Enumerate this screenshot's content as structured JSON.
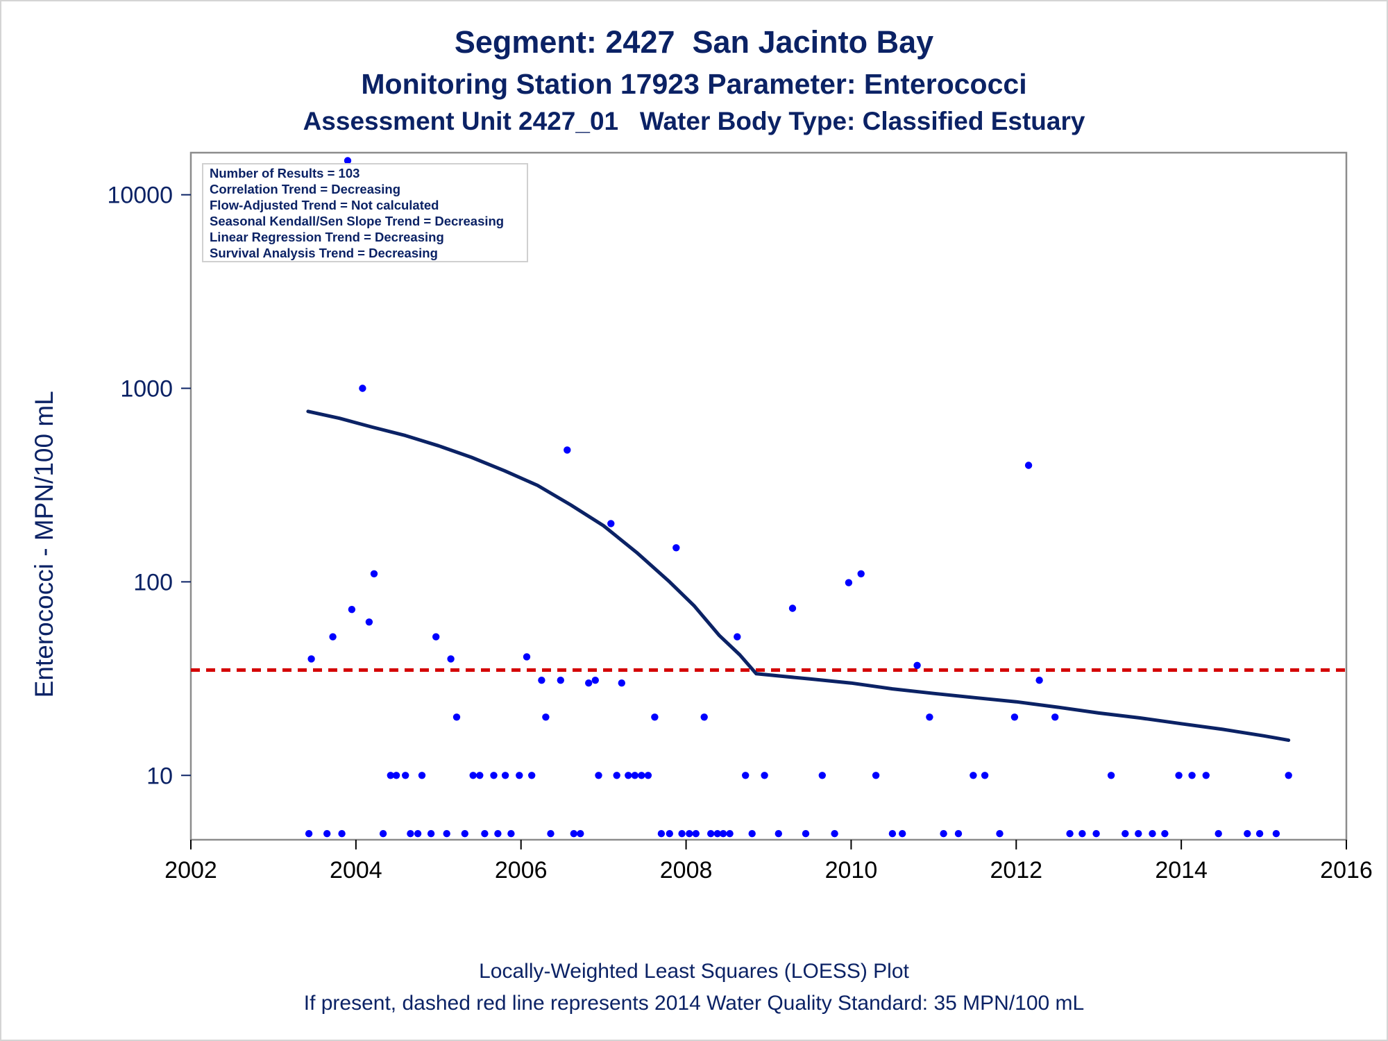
{
  "titles": {
    "title": "Segment: 2427  San Jacinto Bay",
    "subtitle1": "Monitoring Station 17923 Parameter: Enterococci",
    "subtitle2": "Assessment Unit 2427_01   Water Body Type: Classified Estuary"
  },
  "footnotes": {
    "line1": "Locally-Weighted Least Squares (LOESS) Plot",
    "line2": "If present, dashed red line represents 2014 Water Quality Standard: 35 MPN/100 mL"
  },
  "inset": [
    "Number of Results = 103",
    "Correlation Trend = Decreasing",
    "Flow-Adjusted Trend = Not calculated",
    "Seasonal Kendall/Sen Slope Trend = Decreasing",
    "Linear Regression Trend = Decreasing",
    "Survival Analysis Trend = Decreasing"
  ],
  "colors": {
    "text": "#0b2265",
    "points": "#0000ff",
    "loess": "#0b2265",
    "standard": "#d40000",
    "frame": "#8c8c8c"
  },
  "chart_data": {
    "type": "scatter",
    "xlabel": "",
    "ylabel": "Enterococci - MPN/100 mL",
    "x_scale": "linear",
    "y_scale": "log",
    "xlim": [
      2002,
      2016
    ],
    "ylim": [
      4.65,
      16500
    ],
    "x_ticks": [
      2002,
      2004,
      2006,
      2008,
      2010,
      2012,
      2014,
      2016
    ],
    "y_ticks": [
      10,
      100,
      1000,
      10000
    ],
    "grid": false,
    "points": [
      [
        2003.43,
        5
      ],
      [
        2003.46,
        40
      ],
      [
        2003.65,
        5
      ],
      [
        2003.72,
        52
      ],
      [
        2003.83,
        5
      ],
      [
        2003.9,
        15000
      ],
      [
        2003.95,
        72
      ],
      [
        2004.08,
        1000
      ],
      [
        2004.16,
        62
      ],
      [
        2004.22,
        110
      ],
      [
        2004.33,
        5
      ],
      [
        2004.42,
        10
      ],
      [
        2004.49,
        10
      ],
      [
        2004.6,
        10
      ],
      [
        2004.66,
        5
      ],
      [
        2004.75,
        5
      ],
      [
        2004.8,
        10
      ],
      [
        2004.91,
        5
      ],
      [
        2004.97,
        52
      ],
      [
        2005.1,
        5
      ],
      [
        2005.15,
        40
      ],
      [
        2005.22,
        20
      ],
      [
        2005.32,
        5
      ],
      [
        2005.42,
        10
      ],
      [
        2005.5,
        10
      ],
      [
        2005.56,
        5
      ],
      [
        2005.67,
        10
      ],
      [
        2005.72,
        5
      ],
      [
        2005.81,
        10
      ],
      [
        2005.88,
        5
      ],
      [
        2005.98,
        10
      ],
      [
        2006.07,
        41
      ],
      [
        2006.13,
        10
      ],
      [
        2006.25,
        31
      ],
      [
        2006.3,
        20
      ],
      [
        2006.36,
        5
      ],
      [
        2006.48,
        31
      ],
      [
        2006.56,
        480
      ],
      [
        2006.64,
        5
      ],
      [
        2006.72,
        5
      ],
      [
        2006.82,
        30
      ],
      [
        2006.9,
        31
      ],
      [
        2006.94,
        10
      ],
      [
        2007.09,
        200
      ],
      [
        2007.16,
        10
      ],
      [
        2007.22,
        30
      ],
      [
        2007.3,
        10
      ],
      [
        2007.38,
        10
      ],
      [
        2007.46,
        10
      ],
      [
        2007.54,
        10
      ],
      [
        2007.62,
        20
      ],
      [
        2007.7,
        5
      ],
      [
        2007.8,
        5
      ],
      [
        2007.88,
        150
      ],
      [
        2007.95,
        5
      ],
      [
        2008.04,
        5
      ],
      [
        2008.12,
        5
      ],
      [
        2008.22,
        20
      ],
      [
        2008.3,
        5
      ],
      [
        2008.38,
        5
      ],
      [
        2008.45,
        5
      ],
      [
        2008.53,
        5
      ],
      [
        2008.62,
        52
      ],
      [
        2008.72,
        10
      ],
      [
        2008.8,
        5
      ],
      [
        2008.95,
        10
      ],
      [
        2009.12,
        5
      ],
      [
        2009.29,
        73
      ],
      [
        2009.45,
        5
      ],
      [
        2009.65,
        10
      ],
      [
        2009.8,
        5
      ],
      [
        2009.97,
        99
      ],
      [
        2010.12,
        110
      ],
      [
        2010.3,
        10
      ],
      [
        2010.5,
        5
      ],
      [
        2010.62,
        5
      ],
      [
        2010.8,
        37
      ],
      [
        2010.95,
        20
      ],
      [
        2011.12,
        5
      ],
      [
        2011.3,
        5
      ],
      [
        2011.48,
        10
      ],
      [
        2011.62,
        10
      ],
      [
        2011.8,
        5
      ],
      [
        2011.98,
        20
      ],
      [
        2012.15,
        400
      ],
      [
        2012.28,
        31
      ],
      [
        2012.47,
        20
      ],
      [
        2012.65,
        5
      ],
      [
        2012.8,
        5
      ],
      [
        2012.97,
        5
      ],
      [
        2013.15,
        10
      ],
      [
        2013.32,
        5
      ],
      [
        2013.48,
        5
      ],
      [
        2013.65,
        5
      ],
      [
        2013.8,
        5
      ],
      [
        2013.97,
        10
      ],
      [
        2014.13,
        10
      ],
      [
        2014.3,
        10
      ],
      [
        2014.45,
        5
      ],
      [
        2014.8,
        5
      ],
      [
        2014.95,
        5
      ],
      [
        2015.15,
        5
      ],
      [
        2015.3,
        10
      ]
    ],
    "series": [
      {
        "type": "line",
        "points": [
          [
            2003.42,
            760
          ],
          [
            2003.8,
            700
          ],
          [
            2004.2,
            630
          ],
          [
            2004.6,
            570
          ],
          [
            2005.0,
            505
          ],
          [
            2005.4,
            440
          ],
          [
            2005.8,
            375
          ],
          [
            2006.2,
            315
          ],
          [
            2006.6,
            250
          ],
          [
            2007.0,
            195
          ],
          [
            2007.4,
            142
          ],
          [
            2007.8,
            100
          ],
          [
            2008.1,
            75
          ],
          [
            2008.4,
            53
          ],
          [
            2008.65,
            42
          ],
          [
            2008.85,
            33.5
          ],
          [
            2009.5,
            31.5
          ],
          [
            2010.0,
            30
          ],
          [
            2010.5,
            28
          ],
          [
            2011.0,
            26.5
          ],
          [
            2011.5,
            25.2
          ],
          [
            2012.0,
            24
          ],
          [
            2012.5,
            22.5
          ],
          [
            2013.0,
            21
          ],
          [
            2013.5,
            19.8
          ],
          [
            2014.0,
            18.5
          ],
          [
            2014.5,
            17.3
          ],
          [
            2015.0,
            16
          ],
          [
            2015.3,
            15.2
          ]
        ]
      },
      {
        "type": "reference",
        "value": 35
      }
    ]
  }
}
